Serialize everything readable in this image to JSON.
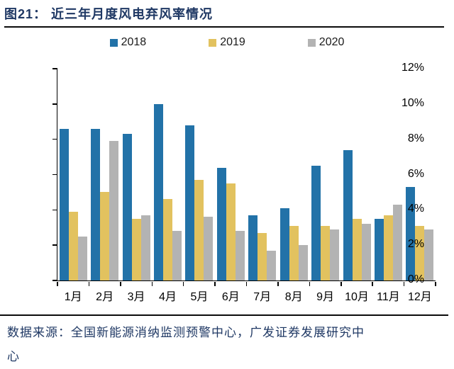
{
  "figure": {
    "label": "图21：",
    "title": "近三年月度风电弃风率情况"
  },
  "legend": [
    {
      "label": "2018",
      "color": "#2272a8"
    },
    {
      "label": "2019",
      "color": "#e2c25f"
    },
    {
      "label": "2020",
      "color": "#b3b3b3"
    }
  ],
  "chart_data": {
    "type": "bar",
    "title": "近三年月度风电弃风率情况",
    "categories": [
      "1月",
      "2月",
      "3月",
      "4月",
      "5月",
      "6月",
      "7月",
      "8月",
      "9月",
      "10月",
      "11月",
      "12月"
    ],
    "series": [
      {
        "name": "2018",
        "color": "#2272a8",
        "values": [
          8.6,
          8.6,
          8.3,
          10.0,
          8.8,
          6.4,
          3.7,
          4.1,
          6.5,
          7.4,
          3.5,
          5.3
        ]
      },
      {
        "name": "2019",
        "color": "#e2c25f",
        "values": [
          3.9,
          5.0,
          3.5,
          4.6,
          5.7,
          5.5,
          2.7,
          3.1,
          3.1,
          3.5,
          3.7,
          3.1
        ]
      },
      {
        "name": "2020",
        "color": "#b3b3b3",
        "values": [
          2.5,
          7.9,
          3.7,
          2.8,
          3.6,
          2.8,
          1.7,
          2.0,
          2.9,
          3.2,
          4.3,
          2.9
        ]
      }
    ],
    "xlabel": "",
    "ylabel": "",
    "ylim": [
      0,
      12
    ],
    "y_tick_step": 2,
    "y_ticks": [
      "0%",
      "2%",
      "4%",
      "6%",
      "8%",
      "10%",
      "12%"
    ],
    "grid": false,
    "legend_position": "top"
  },
  "footer": {
    "source_text": "数据来源：全国新能源消纳监测预警中心，广发证券发展研究中心"
  }
}
